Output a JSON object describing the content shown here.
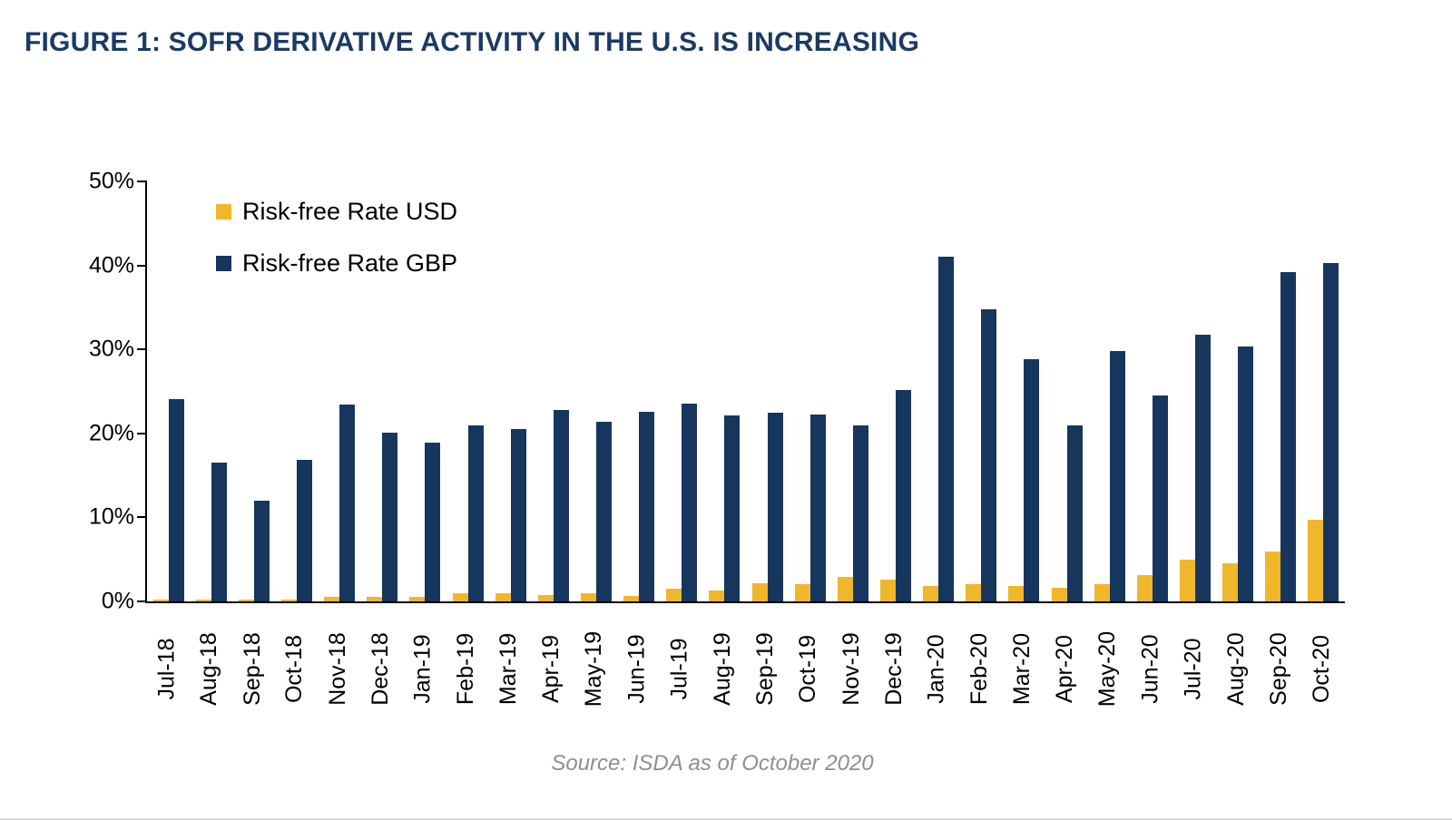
{
  "title": "FIGURE 1: SOFR DERIVATIVE ACTIVITY IN THE U.S. IS INCREASING",
  "source": "Source: ISDA as of October 2020",
  "colors": {
    "title": "#1B3A64",
    "usd_bar": "#EFB72A",
    "gbp_bar": "#17365D",
    "axis": "#000000",
    "source_text": "#8F8F8F"
  },
  "chart_data": {
    "type": "bar",
    "title": "FIGURE 1: SOFR DERIVATIVE ACTIVITY IN THE U.S. IS INCREASING",
    "xlabel": "",
    "ylabel": "",
    "ylim": [
      0,
      50
    ],
    "yticks": [
      0,
      10,
      20,
      30,
      40,
      50
    ],
    "ytick_suffix": "%",
    "grid": false,
    "legend_position": "top-left-inside",
    "categories": [
      "Jul-18",
      "Aug-18",
      "Sep-18",
      "Oct-18",
      "Nov-18",
      "Dec-18",
      "Jan-19",
      "Feb-19",
      "Mar-19",
      "Apr-19",
      "May-19",
      "Jun-19",
      "Jul-19",
      "Aug-19",
      "Sep-19",
      "Oct-19",
      "Nov-19",
      "Dec-19",
      "Jan-20",
      "Feb-20",
      "Mar-20",
      "Apr-20",
      "May-20",
      "Jun-20",
      "Jul-20",
      "Aug-20",
      "Sep-20",
      "Oct-20"
    ],
    "series": [
      {
        "name": "Risk-free Rate USD",
        "color": "#EFB72A",
        "values": [
          0.2,
          0.2,
          0.1,
          0.2,
          0.5,
          0.5,
          0.5,
          1.0,
          1.0,
          0.8,
          1.0,
          0.7,
          1.5,
          1.3,
          2.2,
          2.1,
          2.9,
          2.6,
          1.8,
          2.1,
          1.8,
          1.6,
          2.0,
          3.1,
          5.0,
          4.5,
          5.9,
          9.7
        ]
      },
      {
        "name": "Risk-free Rate GBP",
        "color": "#17365D",
        "values": [
          24.1,
          16.5,
          12.0,
          16.9,
          23.4,
          20.1,
          18.9,
          21.0,
          20.5,
          22.8,
          21.4,
          22.6,
          23.5,
          22.1,
          22.5,
          22.2,
          21.0,
          25.2,
          41.0,
          34.8,
          28.8,
          21.0,
          29.8,
          24.5,
          31.7,
          30.4,
          39.2,
          40.3
        ]
      }
    ]
  }
}
